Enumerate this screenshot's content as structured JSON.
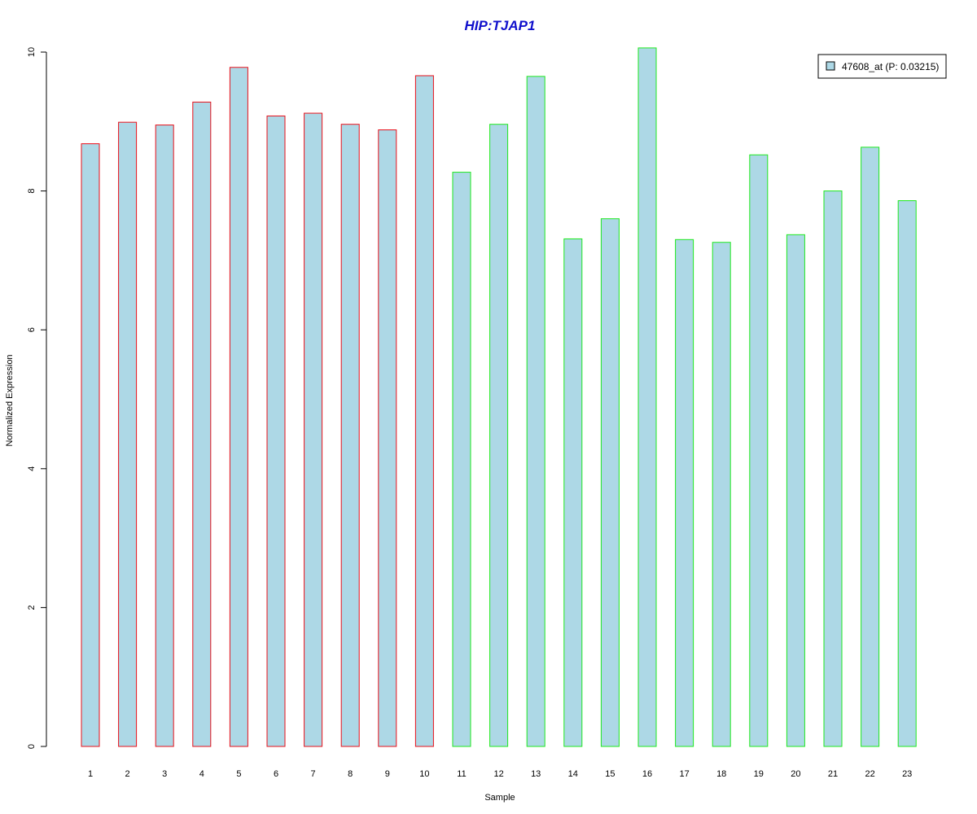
{
  "chart_data": {
    "type": "bar",
    "title": "HIP:TJAP1",
    "xlabel": "Sample",
    "ylabel": "Normalized Expression",
    "ylim": [
      0,
      10
    ],
    "yticks": [
      "0",
      "2",
      "4",
      "6",
      "8",
      "10"
    ],
    "grid": false,
    "legend_position": "top-right",
    "categories": [
      "1",
      "2",
      "3",
      "4",
      "5",
      "6",
      "7",
      "8",
      "9",
      "10",
      "11",
      "12",
      "13",
      "14",
      "15",
      "16",
      "17",
      "18",
      "19",
      "20",
      "21",
      "22",
      "23"
    ],
    "series": [
      {
        "name": "47608_at (P: 0.03215)",
        "values": [
          8.68,
          8.99,
          8.95,
          9.28,
          9.78,
          9.08,
          9.12,
          8.96,
          8.88,
          9.66,
          8.27,
          8.96,
          9.65,
          7.31,
          7.6,
          10.06,
          7.3,
          7.26,
          8.52,
          7.37,
          8.0,
          8.63,
          7.86
        ]
      }
    ],
    "groups": [
      {
        "samples": [
          1,
          10
        ],
        "border_color": "#e8101a"
      },
      {
        "samples": [
          11,
          23
        ],
        "border_color": "#1ee81e"
      }
    ],
    "colors": {
      "bar_fill": "#add8e6",
      "title": "#1010cc",
      "axis": "#000000"
    }
  }
}
